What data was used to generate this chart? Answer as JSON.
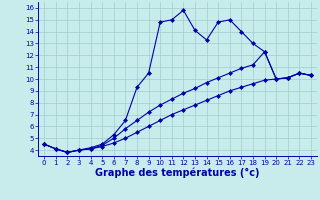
{
  "xlabel": "Graphe des températures (°c)",
  "bg_color": "#c8ecec",
  "line_color": "#0000aa",
  "xlim": [
    -0.5,
    23.5
  ],
  "ylim": [
    3.5,
    16.5
  ],
  "xticks": [
    0,
    1,
    2,
    3,
    4,
    5,
    6,
    7,
    8,
    9,
    10,
    11,
    12,
    13,
    14,
    15,
    16,
    17,
    18,
    19,
    20,
    21,
    22,
    23
  ],
  "yticks": [
    4,
    5,
    6,
    7,
    8,
    9,
    10,
    11,
    12,
    13,
    14,
    15,
    16
  ],
  "series1_x": [
    0,
    1,
    2,
    3,
    4,
    5,
    6,
    7,
    8,
    9,
    10,
    11,
    12,
    13,
    14,
    15,
    16,
    17,
    18,
    19,
    20,
    21,
    22,
    23
  ],
  "series1_y": [
    4.5,
    4.1,
    3.8,
    4.0,
    4.2,
    4.5,
    5.3,
    6.5,
    9.3,
    10.5,
    14.8,
    15.0,
    15.8,
    14.1,
    13.3,
    14.8,
    15.0,
    14.0,
    13.0,
    12.3,
    10.0,
    10.1,
    10.5,
    10.3
  ],
  "series2_x": [
    0,
    1,
    2,
    3,
    4,
    5,
    6,
    7,
    8,
    9,
    10,
    11,
    12,
    13,
    14,
    15,
    16,
    17,
    18,
    19,
    20,
    21,
    22,
    23
  ],
  "series2_y": [
    4.5,
    4.1,
    3.8,
    4.0,
    4.1,
    4.4,
    5.0,
    5.8,
    6.5,
    7.2,
    7.8,
    8.3,
    8.8,
    9.2,
    9.7,
    10.1,
    10.5,
    10.9,
    11.2,
    12.3,
    10.0,
    10.1,
    10.5,
    10.3
  ],
  "series3_x": [
    0,
    1,
    2,
    3,
    4,
    5,
    6,
    7,
    8,
    9,
    10,
    11,
    12,
    13,
    14,
    15,
    16,
    17,
    18,
    19,
    20,
    21,
    22,
    23
  ],
  "series3_y": [
    4.5,
    4.1,
    3.8,
    4.0,
    4.1,
    4.3,
    4.6,
    5.0,
    5.5,
    6.0,
    6.5,
    7.0,
    7.4,
    7.8,
    8.2,
    8.6,
    9.0,
    9.3,
    9.6,
    9.9,
    10.0,
    10.1,
    10.5,
    10.3
  ],
  "grid_color": "#a0cccc",
  "marker": "D",
  "markersize": 2.0,
  "linewidth": 0.8,
  "tick_fontsize": 5.0,
  "xlabel_fontsize": 7.0
}
